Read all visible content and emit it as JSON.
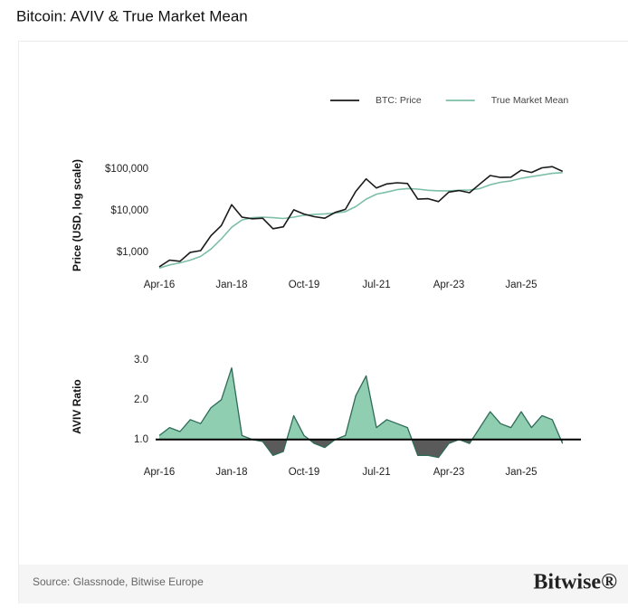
{
  "title": "Bitcoin: AVIV & True Market Mean",
  "source": "Source: Glassnode, Bitwise Europe",
  "logo": "Bitwise®",
  "chart_data": [
    {
      "type": "line",
      "y_label": "Price (USD, log scale)",
      "log_scale": true,
      "categories": [
        "Apr-16",
        "Jul-16",
        "Oct-16",
        "Jan-17",
        "Apr-17",
        "Jul-17",
        "Oct-17",
        "Jan-18",
        "Apr-18",
        "Jul-18",
        "Oct-18",
        "Jan-19",
        "Apr-19",
        "Jul-19",
        "Oct-19",
        "Jan-20",
        "Apr-20",
        "Jul-20",
        "Oct-20",
        "Jan-21",
        "Apr-21",
        "Jul-21",
        "Oct-21",
        "Jan-22",
        "Apr-22",
        "Jul-22",
        "Oct-22",
        "Jan-23",
        "Apr-23",
        "Jul-23",
        "Oct-23",
        "Jan-24",
        "Apr-24",
        "Jul-24",
        "Oct-24",
        "Jan-25",
        "Apr-25",
        "Jul-25",
        "Oct-25",
        "Jan-26"
      ],
      "xticks": [
        "Apr-16",
        "Jan-18",
        "Oct-19",
        "Jul-21",
        "Apr-23",
        "Jan-25"
      ],
      "series": [
        {
          "name": "BTC: Price",
          "color": "#1a1a1a",
          "values": [
            450,
            650,
            610,
            1000,
            1100,
            2500,
            4400,
            14000,
            7000,
            6400,
            6600,
            3700,
            4100,
            10500,
            8300,
            7200,
            6600,
            9100,
            10800,
            29000,
            58000,
            35000,
            44000,
            47000,
            45000,
            19000,
            19400,
            16600,
            28000,
            30500,
            27000,
            44000,
            70000,
            63000,
            64000,
            94000,
            83000,
            107000,
            114000,
            88000
          ]
        },
        {
          "name": "True Market Mean",
          "color": "#7dbfa6",
          "values": [
            420,
            500,
            560,
            650,
            800,
            1200,
            2100,
            4000,
            6000,
            6800,
            7000,
            6800,
            6500,
            7000,
            7800,
            8200,
            8400,
            8800,
            9500,
            12500,
            19000,
            25000,
            28000,
            32000,
            34000,
            33000,
            31000,
            30000,
            30000,
            31000,
            31500,
            34000,
            42000,
            48000,
            52000,
            60000,
            66000,
            72000,
            79000,
            82000
          ]
        }
      ],
      "ylim": [
        300,
        200000
      ],
      "yticks": [
        {
          "value": 1000,
          "label": "$1,000"
        },
        {
          "value": 10000,
          "label": "$10,000"
        },
        {
          "value": 100000,
          "label": "$100,000"
        }
      ],
      "legend": "top-right"
    },
    {
      "type": "area",
      "y_label": "AVIV Ratio",
      "categories": [
        "Apr-16",
        "Jul-16",
        "Oct-16",
        "Jan-17",
        "Apr-17",
        "Jul-17",
        "Oct-17",
        "Jan-18",
        "Apr-18",
        "Jul-18",
        "Oct-18",
        "Jan-19",
        "Apr-19",
        "Jul-19",
        "Oct-19",
        "Jan-20",
        "Apr-20",
        "Jul-20",
        "Oct-20",
        "Jan-21",
        "Apr-21",
        "Jul-21",
        "Oct-21",
        "Jan-22",
        "Apr-22",
        "Jul-22",
        "Oct-22",
        "Jan-23",
        "Apr-23",
        "Jul-23",
        "Oct-23",
        "Jan-24",
        "Apr-24",
        "Jul-24",
        "Oct-24",
        "Jan-25",
        "Apr-25",
        "Jul-25",
        "Oct-25",
        "Jan-26"
      ],
      "xticks": [
        "Apr-16",
        "Jan-18",
        "Oct-19",
        "Jul-21",
        "Apr-23",
        "Jan-25"
      ],
      "values": [
        1.1,
        1.3,
        1.2,
        1.5,
        1.4,
        1.8,
        2.0,
        2.8,
        1.1,
        1.0,
        0.95,
        0.6,
        0.7,
        1.6,
        1.1,
        0.9,
        0.8,
        1.0,
        1.1,
        2.1,
        2.6,
        1.3,
        1.5,
        1.4,
        1.3,
        0.6,
        0.6,
        0.55,
        0.9,
        1.0,
        0.9,
        1.3,
        1.7,
        1.4,
        1.3,
        1.7,
        1.3,
        1.6,
        1.5,
        0.9
      ],
      "color": "#8fceb0",
      "line_color": "#2f6b58",
      "below_color": "#5a5a5a",
      "reference_line": 1.0,
      "ylim": [
        0.45,
        3.2
      ],
      "yticks": [
        {
          "value": 1.0,
          "label": "1.0"
        },
        {
          "value": 2.0,
          "label": "2.0"
        },
        {
          "value": 3.0,
          "label": "3.0"
        }
      ]
    }
  ]
}
